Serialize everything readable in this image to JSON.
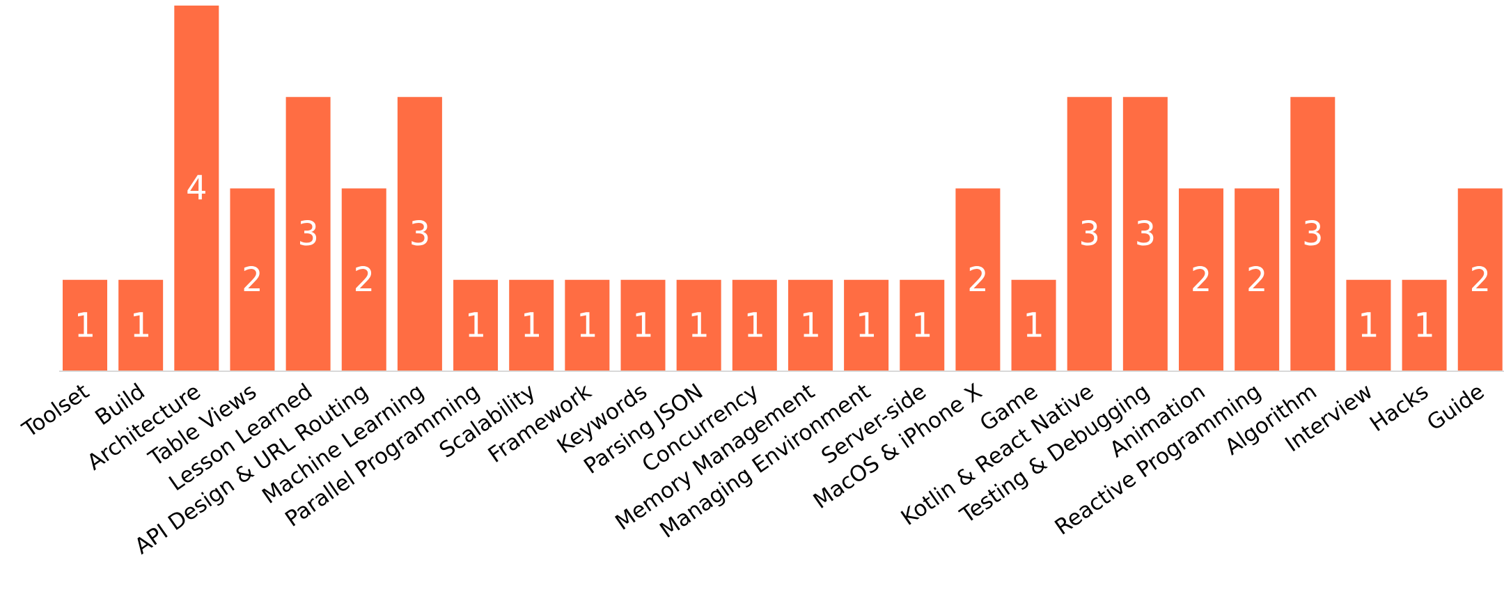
{
  "chart_data": {
    "type": "bar",
    "categories": [
      "Toolset",
      "Build",
      "Architecture",
      "Table Views",
      "Lesson Learned",
      "API Design & URL Routing",
      "Machine Learning",
      "Parallel Programming",
      "Scalability",
      "Framework",
      "Keywords",
      "Parsing JSON",
      "Concurrency",
      "Memory Management",
      "Managing Environment",
      "Server-side",
      "MacOS & iPhone X",
      "Game",
      "Kotlin & React Native",
      "Testing & Debugging",
      "Animation",
      "Reactive Programming",
      "Algorithm",
      "Interview",
      "Hacks",
      "Guide"
    ],
    "values": [
      1,
      1,
      4,
      2,
      3,
      2,
      3,
      1,
      1,
      1,
      1,
      1,
      1,
      1,
      1,
      1,
      2,
      1,
      3,
      3,
      2,
      2,
      3,
      1,
      1,
      2
    ],
    "title": "",
    "xlabel": "",
    "ylabel": "",
    "ylim": [
      0,
      4
    ],
    "grid": false,
    "legend": "none",
    "data_labels": true,
    "bar_color": "#FF6D43",
    "label_color": "#FFFFFF",
    "axis_color": "#D9D9D9",
    "text_color": "#000000"
  }
}
